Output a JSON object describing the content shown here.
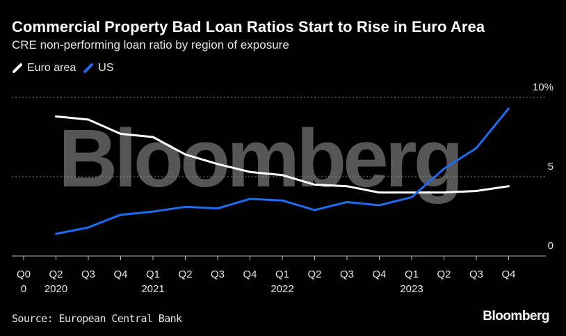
{
  "header": {
    "title": "Commercial Property Bad Loan Ratios Start to Rise in Euro Area",
    "subtitle": "CRE non-performing loan ratio by region of exposure"
  },
  "legend": [
    {
      "label": "Euro area",
      "color": "#ffffff"
    },
    {
      "label": "US",
      "color": "#1e6cf0"
    }
  ],
  "watermark": "Bloomberg",
  "footer": {
    "source": "Source: European Central Bank",
    "brand": "Bloomberg"
  },
  "chart_data": {
    "type": "line",
    "title": "Commercial Property Bad Loan Ratios Start to Rise in Euro Area",
    "subtitle": "CRE non-performing loan ratio by region of exposure",
    "xlabel": "",
    "ylabel": "",
    "x_ticks": [
      {
        "label": "Q0",
        "sub": "0"
      },
      {
        "label": "Q2",
        "sub": "2020"
      },
      {
        "label": "Q3",
        "sub": ""
      },
      {
        "label": "Q4",
        "sub": ""
      },
      {
        "label": "Q1",
        "sub": "2021"
      },
      {
        "label": "Q2",
        "sub": ""
      },
      {
        "label": "Q3",
        "sub": ""
      },
      {
        "label": "Q4",
        "sub": ""
      },
      {
        "label": "Q1",
        "sub": "2022"
      },
      {
        "label": "Q2",
        "sub": ""
      },
      {
        "label": "Q3",
        "sub": ""
      },
      {
        "label": "Q4",
        "sub": ""
      },
      {
        "label": "Q1",
        "sub": "2023"
      },
      {
        "label": "Q2",
        "sub": ""
      },
      {
        "label": "Q3",
        "sub": ""
      },
      {
        "label": "Q4",
        "sub": ""
      }
    ],
    "y_ticks": [
      {
        "value": 10,
        "label": "10%"
      },
      {
        "value": 5,
        "label": "5"
      },
      {
        "value": 0,
        "label": "0"
      }
    ],
    "ylim": [
      0,
      10
    ],
    "gridlines": [
      10,
      5
    ],
    "series": [
      {
        "name": "Euro area",
        "color": "#ffffff",
        "x_index": [
          1,
          2,
          3,
          4,
          5,
          6,
          7,
          8,
          9,
          10,
          11,
          12,
          13,
          14,
          15
        ],
        "values": [
          8.8,
          8.6,
          7.7,
          7.5,
          6.4,
          5.8,
          5.3,
          5.1,
          4.5,
          4.4,
          4.0,
          4.0,
          4.0,
          4.1,
          4.4
        ]
      },
      {
        "name": "US",
        "color": "#1e6cf0",
        "x_index": [
          1,
          2,
          3,
          4,
          5,
          6,
          7,
          8,
          9,
          10,
          11,
          12,
          13,
          14,
          15
        ],
        "values": [
          1.4,
          1.8,
          2.6,
          2.8,
          3.1,
          3.0,
          3.6,
          3.5,
          2.9,
          3.4,
          3.2,
          3.7,
          5.5,
          6.8,
          9.3
        ]
      }
    ],
    "legend_position": "top-left"
  }
}
